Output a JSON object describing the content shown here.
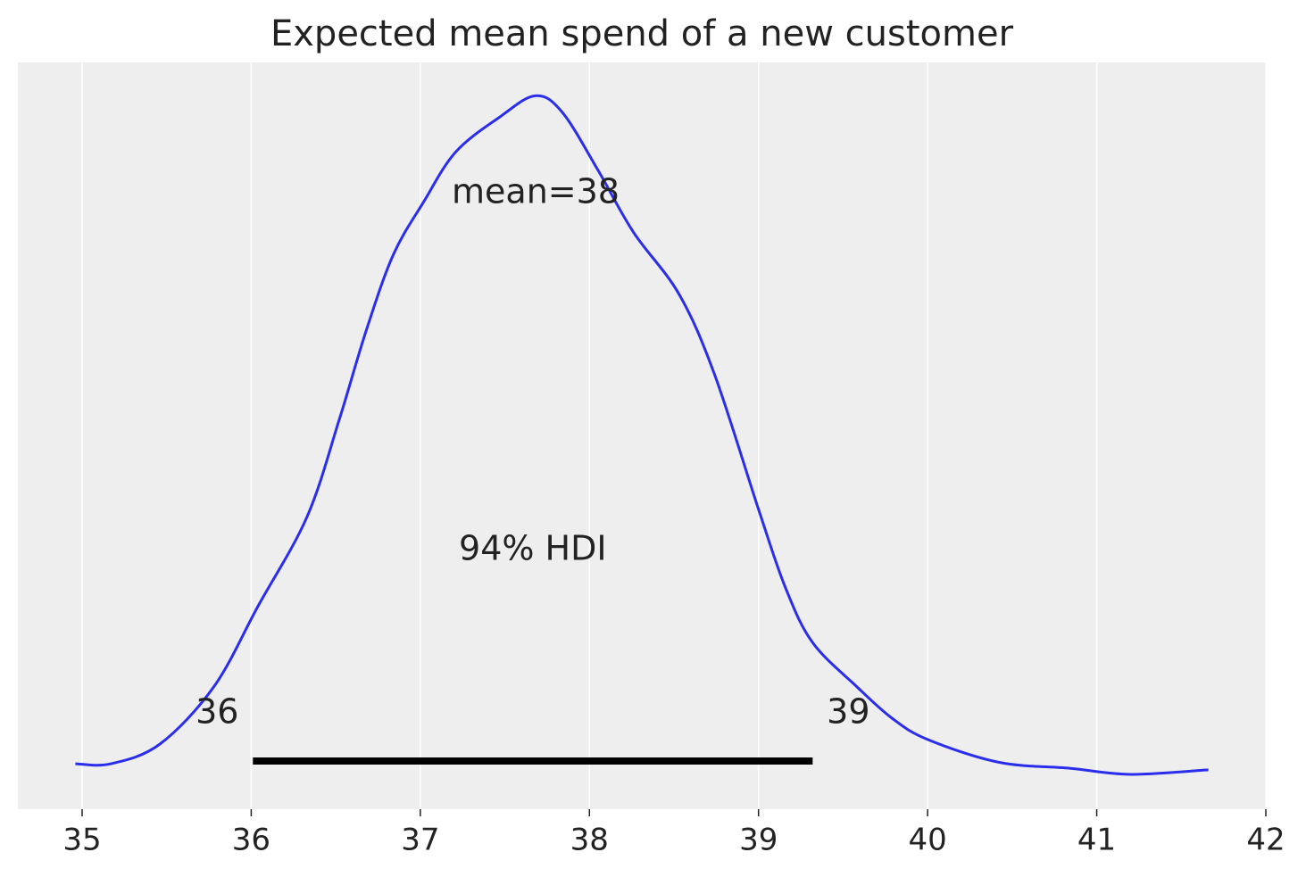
{
  "chart_data": {
    "type": "density",
    "title": "Expected mean spend of a new customer",
    "x": [
      34.96,
      35.17,
      35.46,
      35.78,
      36.04,
      36.33,
      36.52,
      36.68,
      36.84,
      37.02,
      37.21,
      37.47,
      37.68,
      37.84,
      38.05,
      38.26,
      38.53,
      38.74,
      39.0,
      39.16,
      39.32,
      39.58,
      39.79,
      40.0,
      40.42,
      40.84,
      41.2,
      41.66
    ],
    "values": [
      0.008,
      0.008,
      0.021,
      0.059,
      0.112,
      0.171,
      0.235,
      0.294,
      0.344,
      0.379,
      0.412,
      0.435,
      0.449,
      0.438,
      0.4,
      0.359,
      0.318,
      0.265,
      0.176,
      0.124,
      0.088,
      0.059,
      0.038,
      0.024,
      0.009,
      0.005,
      0.001,
      0.004
    ],
    "color": "#2a2eec",
    "mean_label": "mean=38",
    "hdi": {
      "label": "94% HDI",
      "values": [
        36.01,
        39.32
      ],
      "value_labels": [
        "36",
        "39"
      ]
    },
    "xlim": [
      34.62,
      42
    ],
    "xticks": [
      35,
      36,
      37,
      38,
      39,
      40,
      41,
      42
    ],
    "ylim": [
      -0.022,
      0.471
    ],
    "grid": true
  }
}
